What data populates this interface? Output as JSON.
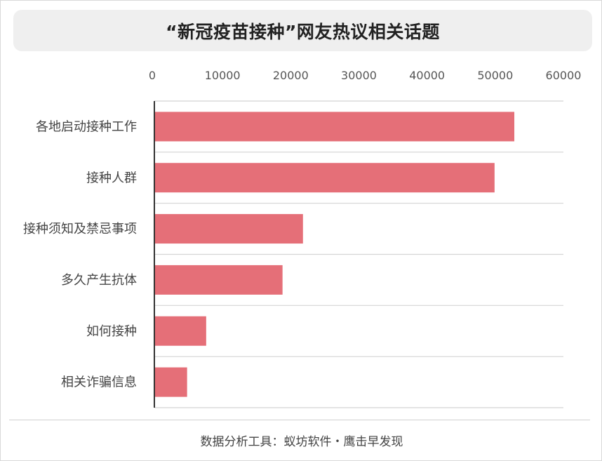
{
  "title": "“新冠疫苗接种”网友热议相关话题",
  "footer": "数据分析工具：蚁坊软件・鹰击早发现",
  "colors": {
    "bar": "#e56f78",
    "grid": "#d4d4d4",
    "axis": "#333333",
    "title_bg": "#efefef"
  },
  "chart_data": {
    "type": "bar",
    "orientation": "horizontal",
    "title": "“新冠疫苗接种”网友热议相关话题",
    "xlabel": "",
    "ylabel": "",
    "categories": [
      "各地启动接种工作",
      "接种人群",
      "接种须知及禁忌事项",
      "多久产生抗体",
      "如何接种",
      "相关诈骗信息"
    ],
    "values": [
      52800,
      49900,
      21800,
      18800,
      7600,
      4800
    ],
    "xlim": [
      0,
      60000
    ],
    "xticks": [
      "0",
      "10000",
      "20000",
      "30000",
      "40000",
      "50000",
      "60000"
    ],
    "axis_position": "top",
    "grid": true
  }
}
